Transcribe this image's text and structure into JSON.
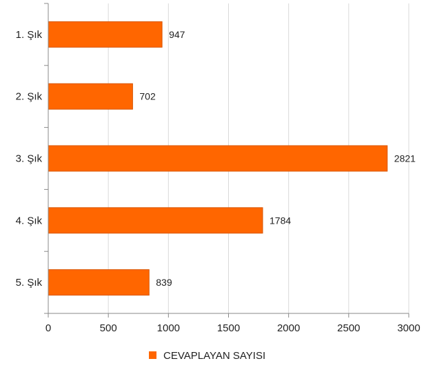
{
  "chart_data": {
    "type": "bar",
    "orientation": "horizontal",
    "categories": [
      "1. Şık",
      "2. Şık",
      "3. Şık",
      "4. Şık",
      "5. Şık"
    ],
    "series": [
      {
        "name": "CEVAPLAYAN SAYISI",
        "values": [
          947,
          702,
          2821,
          1784,
          839
        ],
        "color": "#ff6600"
      }
    ],
    "xlim": [
      0,
      3000
    ],
    "xticks": [
      0,
      500,
      1000,
      1500,
      2000,
      2500,
      3000
    ],
    "grid": true,
    "legend": "bottom",
    "data_labels": true
  },
  "colors": {
    "bar_fill": "#ff6600",
    "bar_stroke": "#d85400",
    "grid": "#d9d9d9",
    "axis": "#888888"
  }
}
